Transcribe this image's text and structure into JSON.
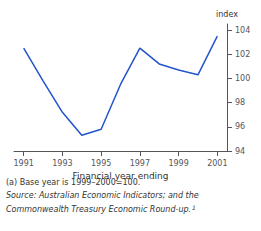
{
  "chart_data": {
    "type": "line",
    "x": [
      1991,
      1992,
      1993,
      1994,
      1995,
      1996,
      1997,
      1998,
      1999,
      2000,
      2001
    ],
    "values": [
      102.5,
      99.8,
      97.2,
      95.3,
      95.8,
      99.5,
      102.5,
      101.2,
      100.7,
      100.3,
      103.5
    ],
    "color": "#2255cc",
    "xlim": [
      1990.5,
      2001.5
    ],
    "ylim": [
      94,
      104.5
    ],
    "xticks": [
      1991,
      1993,
      1995,
      1997,
      1999,
      2001
    ],
    "yticks": [
      94,
      96,
      98,
      100,
      102,
      104
    ],
    "xlabel": "Financial year ending",
    "ylabel": "index",
    "grid": false,
    "annotations": [
      "(a) Base year is 1999–2000=100.",
      "Source: Australian Economic Indicators; and the",
      "Commonwealth Treasury Economic Round-up.",
      "1"
    ]
  }
}
